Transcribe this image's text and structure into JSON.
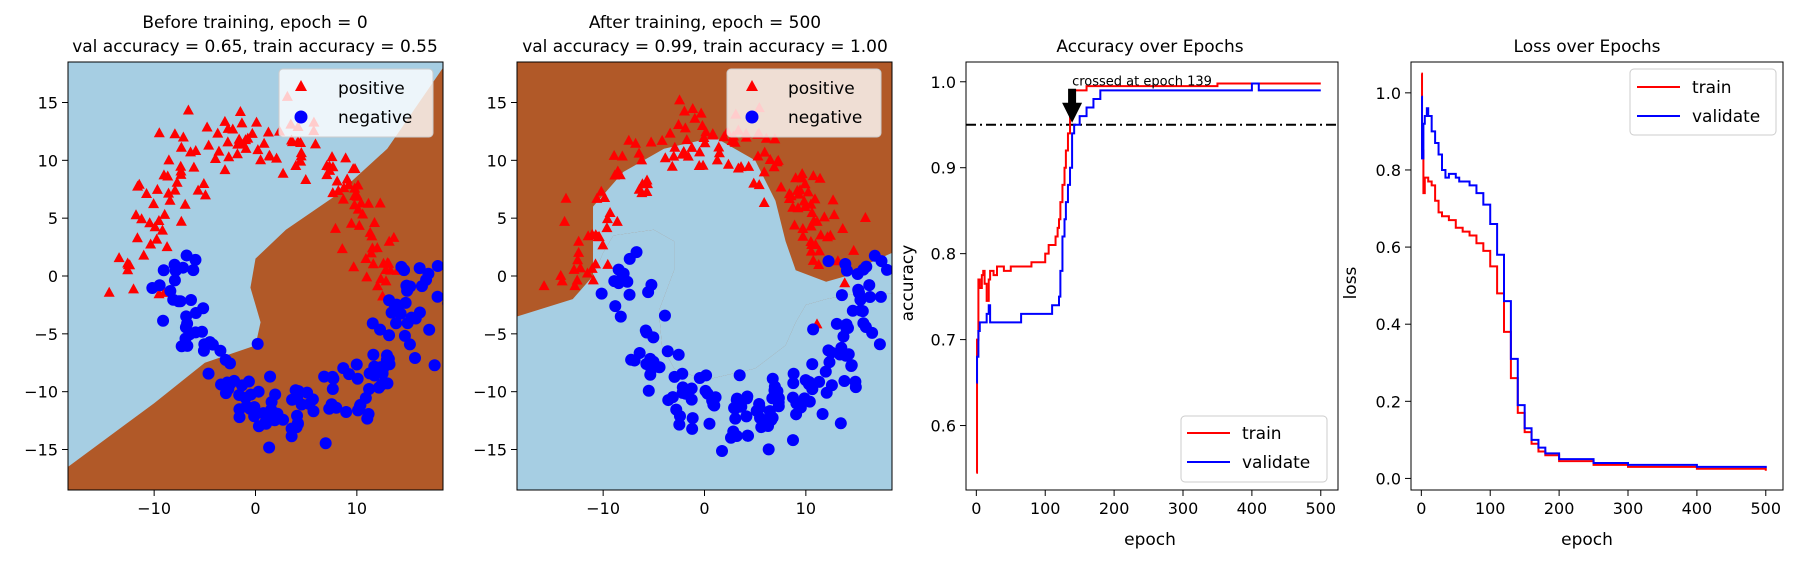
{
  "colors": {
    "positive": "#ff0000",
    "negative": "#0000ff",
    "region_positive": "#b15928",
    "region_negative": "#a6cee3",
    "train": "#ff0000",
    "validate": "#0000ff",
    "threshold": "#000000"
  },
  "chart_data": [
    {
      "type": "scatter",
      "title_line1": "Before training, epoch = 0",
      "title_line2": "val accuracy = 0.65, train accuracy = 0.55",
      "xlim": [
        -18.5,
        18.5
      ],
      "ylim": [
        -18.5,
        18.5
      ],
      "xticks": [
        -10,
        0,
        10
      ],
      "yticks": [
        -15,
        -10,
        -5,
        0,
        5,
        10,
        15
      ],
      "legend": {
        "position": "upper-right",
        "entries": [
          "positive",
          "negative"
        ]
      },
      "decision_boundary": [
        [
          -18.5,
          -16.5
        ],
        [
          -10,
          -11
        ],
        [
          -5,
          -7.5
        ],
        [
          0,
          -6
        ],
        [
          0.5,
          -4
        ],
        [
          -0.5,
          -1
        ],
        [
          0,
          1.5
        ],
        [
          3,
          4
        ],
        [
          8,
          7
        ],
        [
          13,
          11
        ],
        [
          18.5,
          18
        ]
      ]
    },
    {
      "type": "scatter",
      "title_line1": "After training, epoch = 500",
      "title_line2": "val accuracy = 0.99, train accuracy = 1.00",
      "xlim": [
        -18.5,
        18.5
      ],
      "ylim": [
        -18.5,
        18.5
      ],
      "xticks": [
        -10,
        0,
        10
      ],
      "yticks": [
        -15,
        -10,
        -5,
        0,
        5,
        10,
        15
      ],
      "legend": {
        "position": "upper-right",
        "entries": [
          "positive",
          "negative"
        ]
      },
      "negative_region_upper": [
        [
          -11,
          6
        ],
        [
          -8,
          9
        ],
        [
          -4,
          11
        ],
        [
          1,
          12
        ],
        [
          5,
          10
        ],
        [
          7,
          6.5
        ],
        [
          8,
          3
        ],
        [
          9,
          0.5
        ],
        [
          12,
          -0.5
        ],
        [
          14,
          0
        ],
        [
          16,
          1
        ],
        [
          18.5,
          2
        ]
      ],
      "negative_region_lower": [
        [
          -18.5,
          -3.5
        ],
        [
          -13,
          -2
        ],
        [
          -11,
          0
        ],
        [
          -10,
          2
        ],
        [
          -9,
          3.5
        ],
        [
          -5,
          4
        ],
        [
          -3,
          3
        ],
        [
          -3,
          0.5
        ],
        [
          -4.5,
          -3
        ],
        [
          -4.2,
          -6
        ],
        [
          -3,
          -8
        ],
        [
          0,
          -9
        ],
        [
          5,
          -8
        ],
        [
          8,
          -6
        ],
        [
          9,
          -4
        ],
        [
          10,
          -2.5
        ],
        [
          12,
          -2
        ],
        [
          15,
          -1.5
        ],
        [
          18.5,
          -1.5
        ]
      ]
    },
    {
      "type": "line",
      "title": "Accuracy over Epochs",
      "xlabel": "epoch",
      "ylabel": "accuracy",
      "xlim": [
        -15,
        525
      ],
      "ylim": [
        0.525,
        1.023
      ],
      "xticks": [
        0,
        100,
        200,
        300,
        400,
        500
      ],
      "yticks": [
        0.6,
        0.7,
        0.8,
        0.9,
        1.0
      ],
      "legend": {
        "position": "lower-right"
      },
      "threshold": 0.95,
      "annotation": {
        "text": "crossed at epoch 139",
        "epoch": 139,
        "y": 0.95
      },
      "series": [
        {
          "name": "train",
          "x": [
            0,
            1,
            3,
            5,
            8,
            10,
            12,
            15,
            18,
            20,
            25,
            30,
            40,
            50,
            60,
            70,
            80,
            90,
            100,
            105,
            110,
            115,
            118,
            120,
            122,
            125,
            128,
            130,
            133,
            136,
            139,
            143,
            147,
            150,
            160,
            200,
            250,
            300,
            350,
            400,
            410,
            450,
            500
          ],
          "values": [
            0.545,
            0.7,
            0.77,
            0.76,
            0.775,
            0.78,
            0.765,
            0.745,
            0.77,
            0.78,
            0.775,
            0.785,
            0.78,
            0.785,
            0.785,
            0.785,
            0.79,
            0.79,
            0.8,
            0.81,
            0.81,
            0.82,
            0.83,
            0.84,
            0.86,
            0.88,
            0.9,
            0.92,
            0.94,
            0.96,
            0.98,
            0.99,
            0.99,
            0.99,
            0.995,
            0.995,
            0.995,
            0.995,
            0.998,
            0.998,
            0.998,
            0.998,
            0.998
          ]
        },
        {
          "name": "validate",
          "x": [
            0,
            1,
            3,
            5,
            10,
            15,
            18,
            20,
            22,
            25,
            30,
            40,
            50,
            60,
            65,
            70,
            80,
            90,
            100,
            110,
            115,
            118,
            120,
            122,
            125,
            128,
            130,
            133,
            136,
            139,
            142,
            145,
            150,
            160,
            170,
            180,
            190,
            200,
            300,
            400,
            410,
            420,
            500
          ],
          "values": [
            0.65,
            0.68,
            0.71,
            0.72,
            0.72,
            0.73,
            0.74,
            0.72,
            0.72,
            0.72,
            0.72,
            0.72,
            0.72,
            0.72,
            0.73,
            0.73,
            0.73,
            0.73,
            0.73,
            0.74,
            0.74,
            0.74,
            0.75,
            0.78,
            0.82,
            0.84,
            0.86,
            0.88,
            0.9,
            0.94,
            0.95,
            0.95,
            0.96,
            0.97,
            0.98,
            0.99,
            0.99,
            0.99,
            0.99,
            0.998,
            0.99,
            0.99,
            0.99
          ]
        }
      ]
    },
    {
      "type": "line",
      "title": "Loss over Epochs",
      "xlabel": "epoch",
      "ylabel": "loss",
      "xlim": [
        -15,
        525
      ],
      "ylim": [
        -0.03,
        1.08
      ],
      "xticks": [
        0,
        100,
        200,
        300,
        400,
        500
      ],
      "yticks": [
        0.0,
        0.2,
        0.4,
        0.6,
        0.8,
        1.0
      ],
      "legend": {
        "position": "upper-right"
      },
      "series": [
        {
          "name": "train",
          "x": [
            0,
            1,
            3,
            5,
            10,
            15,
            20,
            25,
            30,
            40,
            50,
            60,
            70,
            80,
            90,
            100,
            110,
            120,
            130,
            140,
            150,
            160,
            170,
            180,
            200,
            250,
            300,
            400,
            500
          ],
          "values": [
            1.05,
            0.85,
            0.74,
            0.78,
            0.77,
            0.76,
            0.72,
            0.69,
            0.68,
            0.67,
            0.65,
            0.64,
            0.63,
            0.61,
            0.59,
            0.55,
            0.48,
            0.38,
            0.26,
            0.17,
            0.12,
            0.09,
            0.07,
            0.06,
            0.045,
            0.035,
            0.03,
            0.025,
            0.02
          ]
        },
        {
          "name": "validate",
          "x": [
            0,
            1,
            3,
            5,
            8,
            10,
            15,
            20,
            25,
            30,
            35,
            40,
            45,
            50,
            55,
            60,
            70,
            80,
            90,
            100,
            110,
            120,
            130,
            140,
            150,
            160,
            170,
            180,
            200,
            250,
            300,
            400,
            500
          ],
          "values": [
            0.99,
            0.83,
            0.92,
            0.94,
            0.96,
            0.94,
            0.9,
            0.87,
            0.84,
            0.8,
            0.78,
            0.79,
            0.79,
            0.78,
            0.77,
            0.77,
            0.76,
            0.74,
            0.71,
            0.66,
            0.58,
            0.46,
            0.31,
            0.19,
            0.13,
            0.1,
            0.08,
            0.065,
            0.05,
            0.04,
            0.035,
            0.03,
            0.027
          ]
        }
      ]
    }
  ]
}
